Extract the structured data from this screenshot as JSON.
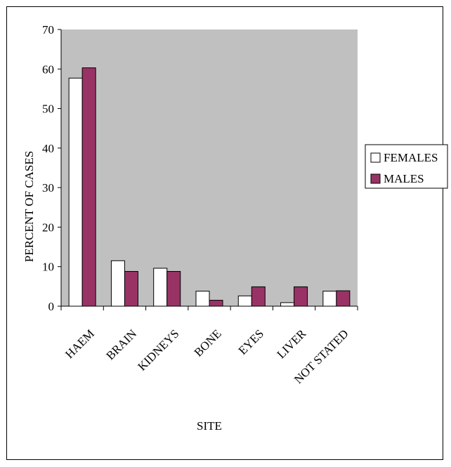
{
  "chart_data": {
    "type": "bar",
    "title": "",
    "xlabel": "SITE",
    "ylabel": "PERCENT OF CASES",
    "ylim": [
      0,
      70
    ],
    "yticks": [
      0,
      10,
      20,
      30,
      40,
      50,
      60,
      70
    ],
    "grid": false,
    "legend_position": "right",
    "categories": [
      "HAEM",
      "BRAIN",
      "KIDNEYS",
      "BONE",
      "EYES",
      "LIVER",
      "NOT STATED"
    ],
    "series": [
      {
        "name": "FEMALES",
        "color": "#ffffff",
        "values": [
          57.7,
          11.5,
          9.6,
          3.8,
          2.6,
          0.9,
          3.8
        ]
      },
      {
        "name": "MALES",
        "color": "#993366",
        "values": [
          60.3,
          8.8,
          8.8,
          1.5,
          4.9,
          4.9,
          3.9
        ]
      }
    ],
    "plot_background": "#c0c0c0"
  }
}
